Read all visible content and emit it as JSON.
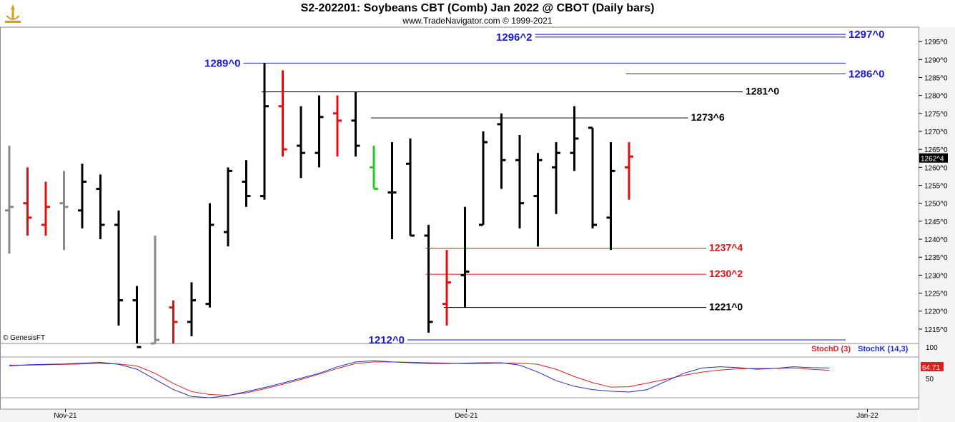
{
  "header": {
    "title": "S2-202201:  Soybeans CBT (Comb) Jan 2022 @ CBOT  (Daily bars)",
    "subtitle": "www.TradeNavigator.com © 1999-2021"
  },
  "watermark": "© GenesisFT",
  "colors": {
    "up_bar": "#000000",
    "down_bar": "#e01010",
    "neutral_bar": "#888888",
    "green_bar": "#22cc22",
    "level_blue": "#1a1acc",
    "level_red": "#e01010",
    "level_black": "#000000",
    "stoch_d": "#e02020",
    "stoch_k": "#2030d0",
    "price_tag_bg": "#000000"
  },
  "chart_data": [
    {
      "type": "ohlc",
      "title": "S2-202201:  Soybeans CBT (Comb) Jan 2022 @ CBOT  (Daily bars)",
      "ylim": [
        1211,
        1299
      ],
      "y_ticks": [
        1215,
        1220,
        1225,
        1230,
        1235,
        1240,
        1245,
        1250,
        1255,
        1260,
        1265,
        1270,
        1275,
        1280,
        1285,
        1290,
        1295
      ],
      "y_tick_labels": [
        "1215^0",
        "1220^0",
        "1225^0",
        "1230^0",
        "1235^0",
        "1240^0",
        "1245^0",
        "1250^0",
        "1255^0",
        "1260^0",
        "1265^0",
        "1270^0",
        "1275^0",
        "1280^0",
        "1285^0",
        "1290^0",
        "1295^0"
      ],
      "x_labels": [
        {
          "label": "Nov-21",
          "index": 3
        },
        {
          "label": "Dec-21",
          "index": 25
        },
        {
          "label": "Jan-22",
          "index": 47
        }
      ],
      "last_price": {
        "label": "1262^4",
        "value": 1262.5
      },
      "bars": [
        {
          "o": 1248,
          "h": 1266,
          "l": 1236,
          "c": 1249,
          "color": "neutral"
        },
        {
          "o": 1250,
          "h": 1260,
          "l": 1241,
          "c": 1246,
          "color": "down"
        },
        {
          "o": 1244,
          "h": 1256,
          "l": 1241,
          "c": 1249,
          "color": "down"
        },
        {
          "o": 1250,
          "h": 1259,
          "l": 1237,
          "c": 1249,
          "color": "neutral"
        },
        {
          "o": 1248,
          "h": 1261,
          "l": 1243,
          "c": 1256,
          "color": "up"
        },
        {
          "o": 1254,
          "h": 1258,
          "l": 1240,
          "c": 1244,
          "color": "up"
        },
        {
          "o": 1244,
          "h": 1248,
          "l": 1216,
          "c": 1223,
          "color": "up"
        },
        {
          "o": 1223,
          "h": 1227,
          "l": 1207,
          "c": 1210,
          "color": "up"
        },
        {
          "o": 1211,
          "h": 1241,
          "l": 1210,
          "c": 1212,
          "color": "neutral"
        },
        {
          "o": 1221,
          "h": 1223,
          "l": 1210,
          "c": 1217,
          "color": "down"
        },
        {
          "o": 1217,
          "h": 1228,
          "l": 1213,
          "c": 1223,
          "color": "up"
        },
        {
          "o": 1222,
          "h": 1250,
          "l": 1221,
          "c": 1244,
          "color": "up"
        },
        {
          "o": 1242,
          "h": 1260,
          "l": 1238,
          "c": 1259,
          "color": "up"
        },
        {
          "o": 1256,
          "h": 1262,
          "l": 1249,
          "c": 1252,
          "color": "up"
        },
        {
          "o": 1252,
          "h": 1289,
          "l": 1251,
          "c": 1277,
          "color": "up"
        },
        {
          "o": 1277,
          "h": 1287,
          "l": 1263,
          "c": 1265,
          "color": "down"
        },
        {
          "o": 1266,
          "h": 1277,
          "l": 1257,
          "c": 1264,
          "color": "up"
        },
        {
          "o": 1264,
          "h": 1280,
          "l": 1260,
          "c": 1274,
          "color": "up"
        },
        {
          "o": 1275,
          "h": 1280,
          "l": 1263,
          "c": 1273,
          "color": "down"
        },
        {
          "o": 1273,
          "h": 1281,
          "l": 1263,
          "c": 1266,
          "color": "up"
        },
        {
          "o": 1260,
          "h": 1266,
          "l": 1254,
          "c": 1254,
          "color": "green"
        },
        {
          "o": 1253,
          "h": 1267,
          "l": 1240,
          "c": 1253,
          "color": "up"
        },
        {
          "o": 1261,
          "h": 1268,
          "l": 1241,
          "c": 1241,
          "color": "up"
        },
        {
          "o": 1241,
          "h": 1244,
          "l": 1214,
          "c": 1217,
          "color": "up"
        },
        {
          "o": 1222,
          "h": 1237,
          "l": 1216,
          "c": 1228,
          "color": "down"
        },
        {
          "o": 1230,
          "h": 1249,
          "l": 1221,
          "c": 1231,
          "color": "up"
        },
        {
          "o": 1244,
          "h": 1270,
          "l": 1244,
          "c": 1267,
          "color": "up"
        },
        {
          "o": 1272,
          "h": 1275,
          "l": 1254,
          "c": 1262,
          "color": "up"
        },
        {
          "o": 1262,
          "h": 1269,
          "l": 1243,
          "c": 1250,
          "color": "up"
        },
        {
          "o": 1252,
          "h": 1264,
          "l": 1238,
          "c": 1262,
          "color": "up"
        },
        {
          "o": 1260,
          "h": 1267,
          "l": 1247,
          "c": 1264,
          "color": "up"
        },
        {
          "o": 1264,
          "h": 1277,
          "l": 1259,
          "c": 1268,
          "color": "up"
        },
        {
          "o": 1271,
          "h": 1271,
          "l": 1243,
          "c": 1244,
          "color": "up"
        },
        {
          "o": 1246,
          "h": 1267,
          "l": 1237,
          "c": 1259,
          "color": "up"
        },
        {
          "o": 1260,
          "h": 1267,
          "l": 1251,
          "c": 1263,
          "color": "down"
        }
      ],
      "levels": [
        {
          "label": "1297^0",
          "value": 1297.0,
          "color": "blue",
          "from": 29,
          "to": 48,
          "label_pos": "right"
        },
        {
          "label": "1296^2",
          "value": 1296.25,
          "color": "blue",
          "from": 29,
          "to": 48,
          "label_pos": "left"
        },
        {
          "label": "1289^0",
          "value": 1289.0,
          "color": "blue",
          "from": 13,
          "to": 48,
          "label_pos": "left"
        },
        {
          "label": "1286^0",
          "value": 1286.0,
          "color": "blue",
          "from": 34,
          "to": 48,
          "label_pos": "right"
        },
        {
          "label": "1281^0",
          "value": 1281.0,
          "color": "black",
          "from": 14,
          "to": 40,
          "label_pos": "right"
        },
        {
          "label": "1273^6",
          "value": 1273.75,
          "color": "black",
          "from": 20,
          "to": 37,
          "label_pos": "right"
        },
        {
          "label": "1237^4",
          "value": 1237.5,
          "color": "red",
          "from": 23,
          "to": 38,
          "label_pos": "right"
        },
        {
          "label": "1230^2",
          "value": 1230.25,
          "color": "red",
          "from": 23,
          "to": 38,
          "label_pos": "right"
        },
        {
          "label": "1221^0",
          "value": 1221.0,
          "color": "black",
          "from": 24,
          "to": 38,
          "label_pos": "right"
        },
        {
          "label": "1212^0",
          "value": 1212.0,
          "color": "blue",
          "from": 22,
          "to": 48,
          "label_pos": "left"
        }
      ]
    },
    {
      "type": "line",
      "title": "",
      "ylim": [
        0,
        100
      ],
      "y_tick_labels": [
        "100",
        "50"
      ],
      "series": [
        {
          "name": "StochD (3)",
          "color": "#e02020",
          "values": [
            80,
            80,
            81,
            82,
            83,
            84,
            83,
            78,
            60,
            35,
            15,
            8,
            6,
            12,
            22,
            33,
            45,
            58,
            72,
            84,
            88,
            88,
            87,
            86,
            85,
            84,
            84,
            85,
            85,
            82,
            70,
            52,
            37,
            26,
            27,
            36,
            45,
            55,
            63,
            68,
            71,
            72,
            72,
            73,
            70,
            67
          ]
        },
        {
          "name": "StochK (14,3)",
          "color": "#2030d0",
          "values": [
            78,
            81,
            82,
            83,
            85,
            87,
            82,
            70,
            45,
            20,
            3,
            0,
            5,
            15,
            25,
            36,
            48,
            60,
            76,
            88,
            91,
            88,
            86,
            84,
            84,
            85,
            86,
            86,
            80,
            63,
            42,
            28,
            20,
            16,
            14,
            20,
            40,
            60,
            73,
            76,
            74,
            70,
            72,
            76,
            74,
            73
          ]
        }
      ],
      "last_value_label": "64.71",
      "legend": [
        "StochD (3)",
        "StochK (14,3)"
      ]
    }
  ]
}
